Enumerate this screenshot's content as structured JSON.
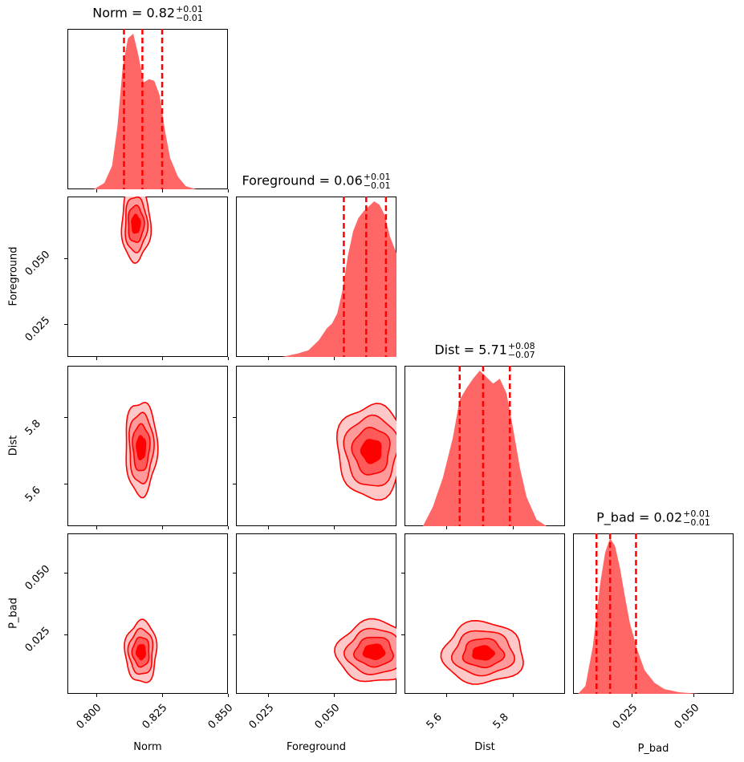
{
  "chart_data": {
    "type": "corner",
    "parameters": [
      "Norm",
      "Foreground",
      "Dist",
      "P_bad"
    ],
    "color": "#ff0000",
    "fill_color": "#ff6666",
    "quantile_line_color": "#ff0000",
    "ranges": {
      "Norm": [
        0.789,
        0.85
      ],
      "Foreground": [
        0.0125,
        0.0735
      ],
      "Dist": [
        5.475,
        5.955
      ],
      "P_bad": [
        0.001,
        0.066
      ]
    },
    "ticks": {
      "Norm": [
        "0.800",
        "0.825",
        "0.850"
      ],
      "Foreground": [
        "0.025",
        "0.050"
      ],
      "Dist": [
        "5.6",
        "5.8"
      ],
      "P_bad": [
        "0.025",
        "0.050"
      ]
    },
    "tick_values": {
      "Norm": [
        0.8,
        0.825,
        0.85
      ],
      "Foreground": [
        0.025,
        0.05
      ],
      "Dist": [
        5.6,
        5.8
      ],
      "P_bad": [
        0.025,
        0.05
      ]
    },
    "titles": {
      "Norm": {
        "name": "Norm",
        "value": "0.82",
        "plus": "+0.01",
        "minus": "−0.01"
      },
      "Foreground": {
        "name": "Foreground",
        "value": "0.06",
        "plus": "+0.01",
        "minus": "−0.01"
      },
      "Dist": {
        "name": "Dist",
        "value": "5.71",
        "plus": "+0.08",
        "minus": "−0.07"
      },
      "P_bad": {
        "name": "P_bad",
        "value": "0.02",
        "plus": "+0.01",
        "minus": "−0.01"
      }
    },
    "quantiles": {
      "Norm": [
        0.8105,
        0.8175,
        0.825
      ],
      "Foreground": [
        0.0535,
        0.062,
        0.0695
      ],
      "Dist": [
        5.64,
        5.71,
        5.79
      ],
      "P_bad": [
        0.0105,
        0.016,
        0.0265
      ]
    },
    "marginals": {
      "Norm": {
        "x": [
          0.799,
          0.803,
          0.806,
          0.808,
          0.81,
          0.812,
          0.814,
          0.816,
          0.818,
          0.819,
          0.82,
          0.822,
          0.824,
          0.826,
          0.828,
          0.831,
          0.834,
          0.838
        ],
        "y": [
          0.0,
          0.04,
          0.15,
          0.4,
          0.78,
          0.96,
          0.99,
          0.85,
          0.68,
          0.69,
          0.7,
          0.69,
          0.6,
          0.38,
          0.2,
          0.08,
          0.02,
          0.0
        ]
      },
      "Foreground": {
        "x": [
          0.03,
          0.036,
          0.04,
          0.044,
          0.047,
          0.049,
          0.051,
          0.053,
          0.055,
          0.057,
          0.059,
          0.061,
          0.063,
          0.065,
          0.067,
          0.069,
          0.071,
          0.0735
        ],
        "y": [
          0.0,
          0.02,
          0.04,
          0.1,
          0.17,
          0.2,
          0.26,
          0.4,
          0.6,
          0.75,
          0.83,
          0.87,
          0.9,
          0.93,
          0.91,
          0.85,
          0.72,
          0.62
        ]
      },
      "Dist": {
        "x": [
          5.53,
          5.56,
          5.59,
          5.62,
          5.64,
          5.66,
          5.68,
          5.7,
          5.72,
          5.74,
          5.76,
          5.78,
          5.8,
          5.82,
          5.84,
          5.87,
          5.9
        ],
        "y": [
          0.0,
          0.12,
          0.3,
          0.55,
          0.78,
          0.85,
          0.91,
          0.96,
          0.92,
          0.88,
          0.91,
          0.82,
          0.6,
          0.36,
          0.18,
          0.04,
          0.0
        ]
      },
      "P_bad": {
        "x": [
          0.003,
          0.006,
          0.009,
          0.012,
          0.014,
          0.016,
          0.018,
          0.02,
          0.022,
          0.024,
          0.027,
          0.03,
          0.034,
          0.038,
          0.044,
          0.052
        ],
        "y": [
          0.0,
          0.05,
          0.3,
          0.7,
          0.9,
          0.99,
          0.94,
          0.8,
          0.62,
          0.45,
          0.28,
          0.15,
          0.07,
          0.03,
          0.01,
          0.0
        ]
      }
    },
    "contours_2d": [
      {
        "x": "Norm",
        "y": "Foreground",
        "center": [
          0.815,
          0.063
        ],
        "radii": [
          [
            0.0055,
            0.014
          ],
          [
            0.0042,
            0.0105
          ],
          [
            0.003,
            0.007
          ],
          [
            0.0016,
            0.0035
          ]
        ]
      },
      {
        "x": "Norm",
        "y": "Dist",
        "center": [
          0.817,
          5.71
        ],
        "radii": [
          [
            0.006,
            0.14
          ],
          [
            0.0046,
            0.105
          ],
          [
            0.0032,
            0.07
          ],
          [
            0.0017,
            0.035
          ]
        ]
      },
      {
        "x": "Foreground",
        "y": "Dist",
        "center": [
          0.064,
          5.7
        ],
        "radii": [
          [
            0.013,
            0.14
          ],
          [
            0.01,
            0.105
          ],
          [
            0.007,
            0.07
          ],
          [
            0.0038,
            0.035
          ]
        ]
      },
      {
        "x": "Norm",
        "y": "P_bad",
        "center": [
          0.817,
          0.018
        ],
        "radii": [
          [
            0.006,
            0.0125
          ],
          [
            0.0046,
            0.0092
          ],
          [
            0.0032,
            0.006
          ],
          [
            0.0017,
            0.003
          ]
        ]
      },
      {
        "x": "Foreground",
        "y": "P_bad",
        "center": [
          0.065,
          0.018
        ],
        "radii": [
          [
            0.014,
            0.0125
          ],
          [
            0.0105,
            0.0092
          ],
          [
            0.0072,
            0.006
          ],
          [
            0.004,
            0.003
          ]
        ]
      },
      {
        "x": "Dist",
        "y": "P_bad",
        "center": [
          5.71,
          0.0175
        ],
        "radii": [
          [
            0.12,
            0.0125
          ],
          [
            0.09,
            0.009
          ],
          [
            0.06,
            0.0058
          ],
          [
            0.032,
            0.0028
          ]
        ]
      }
    ],
    "xlabels": [
      "Norm",
      "Foreground",
      "Dist",
      "P_bad"
    ],
    "ylabels": [
      "Foreground",
      "Dist",
      "P_bad"
    ]
  }
}
